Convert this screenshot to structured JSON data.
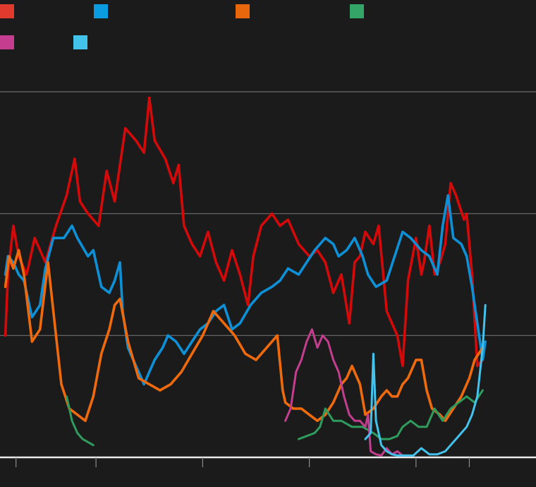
{
  "chart_data": {
    "type": "line",
    "title": "",
    "xlabel": "",
    "ylabel": "",
    "x_range": [
      2009.7,
      2019.75
    ],
    "ylim": [
      0,
      60
    ],
    "grid": "horizontal",
    "x_ticks": [
      2010,
      2011.5,
      2013.5,
      2015.5,
      2017.5,
      2018.5
    ],
    "y_ticks": [
      0,
      20,
      40,
      60
    ],
    "legend_placement": "top-left",
    "legend": [
      {
        "color": "#e03a2f"
      },
      {
        "color": "#0b9be0"
      },
      {
        "color": "#e8670c"
      },
      {
        "color": "#35a467"
      },
      {
        "color": "#c43d8f"
      },
      {
        "color": "#41c3ea"
      }
    ],
    "series": [
      {
        "color": "#d40a0a",
        "points": [
          [
            2009.8,
            20
          ],
          [
            2009.85,
            30
          ],
          [
            2009.95,
            38
          ],
          [
            2010.05,
            33
          ],
          [
            2010.2,
            30
          ],
          [
            2010.35,
            36
          ],
          [
            2010.55,
            32
          ],
          [
            2010.75,
            38
          ],
          [
            2010.95,
            43
          ],
          [
            2011.1,
            49
          ],
          [
            2011.2,
            42
          ],
          [
            2011.35,
            40
          ],
          [
            2011.55,
            38
          ],
          [
            2011.7,
            47
          ],
          [
            2011.85,
            42
          ],
          [
            2012.05,
            54
          ],
          [
            2012.25,
            52
          ],
          [
            2012.4,
            50
          ],
          [
            2012.5,
            59
          ],
          [
            2012.6,
            52
          ],
          [
            2012.8,
            49
          ],
          [
            2012.95,
            45
          ],
          [
            2013.05,
            48
          ],
          [
            2013.15,
            38
          ],
          [
            2013.3,
            35
          ],
          [
            2013.45,
            33
          ],
          [
            2013.6,
            37
          ],
          [
            2013.75,
            32
          ],
          [
            2013.9,
            29
          ],
          [
            2014.05,
            34
          ],
          [
            2014.2,
            30
          ],
          [
            2014.35,
            25
          ],
          [
            2014.45,
            33
          ],
          [
            2014.6,
            38
          ],
          [
            2014.8,
            40
          ],
          [
            2014.95,
            38
          ],
          [
            2015.1,
            39
          ],
          [
            2015.3,
            35
          ],
          [
            2015.5,
            33
          ],
          [
            2015.65,
            34
          ],
          [
            2015.8,
            32
          ],
          [
            2015.95,
            27
          ],
          [
            2016.1,
            30
          ],
          [
            2016.25,
            22
          ],
          [
            2016.35,
            32
          ],
          [
            2016.45,
            33
          ],
          [
            2016.55,
            37
          ],
          [
            2016.7,
            35
          ],
          [
            2016.8,
            38
          ],
          [
            2016.95,
            24
          ],
          [
            2017.05,
            22
          ],
          [
            2017.15,
            20
          ],
          [
            2017.25,
            15
          ],
          [
            2017.35,
            29
          ],
          [
            2017.5,
            36
          ],
          [
            2017.6,
            30
          ],
          [
            2017.65,
            32
          ],
          [
            2017.75,
            38
          ],
          [
            2017.85,
            30
          ],
          [
            2017.95,
            32
          ],
          [
            2018.05,
            35
          ],
          [
            2018.15,
            45
          ],
          [
            2018.25,
            43
          ],
          [
            2018.4,
            39
          ],
          [
            2018.45,
            40
          ],
          [
            2018.55,
            30
          ],
          [
            2018.65,
            15
          ],
          [
            2018.75,
            16
          ]
        ]
      },
      {
        "color": "#0d90d6",
        "points": [
          [
            2009.8,
            30
          ],
          [
            2009.85,
            33
          ],
          [
            2009.95,
            32
          ],
          [
            2010.05,
            30
          ],
          [
            2010.15,
            29
          ],
          [
            2010.3,
            23
          ],
          [
            2010.45,
            25
          ],
          [
            2010.55,
            31
          ],
          [
            2010.7,
            36
          ],
          [
            2010.9,
            36
          ],
          [
            2011.05,
            38
          ],
          [
            2011.15,
            36
          ],
          [
            2011.35,
            33
          ],
          [
            2011.45,
            34
          ],
          [
            2011.6,
            28
          ],
          [
            2011.75,
            27
          ],
          [
            2011.85,
            29
          ],
          [
            2011.95,
            32
          ],
          [
            2012.0,
            24
          ],
          [
            2012.1,
            18
          ],
          [
            2012.25,
            15
          ],
          [
            2012.4,
            12
          ],
          [
            2012.5,
            14
          ],
          [
            2012.6,
            16
          ],
          [
            2012.75,
            18
          ],
          [
            2012.85,
            20
          ],
          [
            2013.0,
            19
          ],
          [
            2013.15,
            17
          ],
          [
            2013.3,
            19
          ],
          [
            2013.45,
            21
          ],
          [
            2013.6,
            22
          ],
          [
            2013.75,
            24
          ],
          [
            2013.9,
            25
          ],
          [
            2014.05,
            21
          ],
          [
            2014.2,
            22
          ],
          [
            2014.4,
            25
          ],
          [
            2014.6,
            27
          ],
          [
            2014.8,
            28
          ],
          [
            2014.95,
            29
          ],
          [
            2015.1,
            31
          ],
          [
            2015.3,
            30
          ],
          [
            2015.45,
            32
          ],
          [
            2015.6,
            34
          ],
          [
            2015.8,
            36
          ],
          [
            2015.95,
            35
          ],
          [
            2016.05,
            33
          ],
          [
            2016.2,
            34
          ],
          [
            2016.35,
            36
          ],
          [
            2016.5,
            33
          ],
          [
            2016.6,
            30
          ],
          [
            2016.75,
            28
          ],
          [
            2016.95,
            29
          ],
          [
            2017.1,
            33
          ],
          [
            2017.25,
            37
          ],
          [
            2017.4,
            36
          ],
          [
            2017.6,
            34
          ],
          [
            2017.75,
            33
          ],
          [
            2017.9,
            30
          ],
          [
            2018.0,
            38
          ],
          [
            2018.1,
            43
          ],
          [
            2018.2,
            36
          ],
          [
            2018.35,
            35
          ],
          [
            2018.45,
            33
          ],
          [
            2018.55,
            28
          ],
          [
            2018.65,
            22
          ],
          [
            2018.7,
            19
          ],
          [
            2018.75,
            16
          ],
          [
            2018.8,
            19
          ]
        ]
      },
      {
        "color": "#ee6a0c",
        "points": [
          [
            2009.8,
            28
          ],
          [
            2009.87,
            33
          ],
          [
            2009.95,
            31
          ],
          [
            2010.05,
            34
          ],
          [
            2010.15,
            30
          ],
          [
            2010.3,
            19
          ],
          [
            2010.45,
            21
          ],
          [
            2010.6,
            32
          ],
          [
            2010.75,
            20
          ],
          [
            2010.85,
            12
          ],
          [
            2011.0,
            8
          ],
          [
            2011.15,
            7
          ],
          [
            2011.3,
            6
          ],
          [
            2011.45,
            10
          ],
          [
            2011.6,
            17
          ],
          [
            2011.75,
            21
          ],
          [
            2011.85,
            25
          ],
          [
            2011.95,
            26
          ],
          [
            2012.1,
            19
          ],
          [
            2012.3,
            13
          ],
          [
            2012.5,
            12
          ],
          [
            2012.7,
            11
          ],
          [
            2012.9,
            12
          ],
          [
            2013.1,
            14
          ],
          [
            2013.3,
            17
          ],
          [
            2013.5,
            20
          ],
          [
            2013.7,
            24
          ],
          [
            2013.9,
            22
          ],
          [
            2014.1,
            20
          ],
          [
            2014.3,
            17
          ],
          [
            2014.5,
            16
          ],
          [
            2014.7,
            18
          ],
          [
            2014.9,
            20
          ],
          [
            2015.0,
            11
          ],
          [
            2015.05,
            9
          ],
          [
            2015.2,
            8
          ],
          [
            2015.35,
            8
          ],
          [
            2015.5,
            7
          ],
          [
            2015.65,
            6
          ],
          [
            2015.8,
            7
          ],
          [
            2015.95,
            9
          ],
          [
            2016.1,
            12
          ],
          [
            2016.2,
            13
          ],
          [
            2016.3,
            15
          ],
          [
            2016.45,
            12
          ],
          [
            2016.55,
            7
          ],
          [
            2016.7,
            8
          ],
          [
            2016.85,
            10
          ],
          [
            2016.95,
            11
          ],
          [
            2017.05,
            10
          ],
          [
            2017.15,
            10
          ],
          [
            2017.25,
            12
          ],
          [
            2017.35,
            13
          ],
          [
            2017.5,
            16
          ],
          [
            2017.6,
            16
          ],
          [
            2017.7,
            11
          ],
          [
            2017.8,
            8
          ],
          [
            2017.95,
            7
          ],
          [
            2018.05,
            6
          ],
          [
            2018.2,
            8
          ],
          [
            2018.35,
            10
          ],
          [
            2018.5,
            13
          ],
          [
            2018.6,
            16
          ],
          [
            2018.75,
            18
          ]
        ]
      },
      {
        "color": "#2f9c5e",
        "segments": [
          [
            [
              2010.95,
              10
            ],
            [
              2011.05,
              6
            ],
            [
              2011.15,
              4
            ],
            [
              2011.25,
              3
            ],
            [
              2011.35,
              2.5
            ],
            [
              2011.45,
              2
            ]
          ],
          [
            [
              2015.3,
              3
            ],
            [
              2015.45,
              3.5
            ],
            [
              2015.6,
              4
            ],
            [
              2015.7,
              5
            ],
            [
              2015.8,
              8
            ],
            [
              2015.95,
              6
            ],
            [
              2016.1,
              6
            ],
            [
              2016.3,
              5
            ],
            [
              2016.5,
              5
            ],
            [
              2016.7,
              4
            ],
            [
              2016.85,
              3
            ],
            [
              2017.0,
              3
            ],
            [
              2017.15,
              3.5
            ],
            [
              2017.25,
              5
            ],
            [
              2017.4,
              6
            ],
            [
              2017.55,
              5
            ],
            [
              2017.7,
              5
            ],
            [
              2017.85,
              8
            ],
            [
              2018.0,
              6
            ],
            [
              2018.15,
              8
            ],
            [
              2018.3,
              9
            ],
            [
              2018.45,
              10
            ],
            [
              2018.6,
              9
            ],
            [
              2018.75,
              11
            ]
          ]
        ]
      },
      {
        "color": "#c33e8e",
        "segments": [
          [
            [
              2015.05,
              6
            ],
            [
              2015.15,
              8
            ],
            [
              2015.25,
              14
            ],
            [
              2015.35,
              16
            ],
            [
              2015.45,
              19
            ],
            [
              2015.55,
              21
            ],
            [
              2015.65,
              18
            ],
            [
              2015.75,
              20
            ],
            [
              2015.85,
              19
            ],
            [
              2015.95,
              16
            ],
            [
              2016.05,
              14
            ],
            [
              2016.15,
              10
            ],
            [
              2016.25,
              7
            ],
            [
              2016.35,
              6
            ],
            [
              2016.45,
              6
            ],
            [
              2016.55,
              5
            ],
            [
              2016.6,
              7
            ],
            [
              2016.65,
              1
            ],
            [
              2016.75,
              0.5
            ],
            [
              2016.85,
              0.3
            ],
            [
              2016.95,
              1.5
            ],
            [
              2017.05,
              0.5
            ],
            [
              2017.15,
              1
            ],
            [
              2017.25,
              0.3
            ],
            [
              2017.35,
              0.3
            ]
          ]
        ]
      },
      {
        "color": "#43c3ec",
        "segments": [
          [
            [
              2016.55,
              3
            ],
            [
              2016.65,
              4
            ],
            [
              2016.7,
              17
            ],
            [
              2016.75,
              6
            ],
            [
              2016.8,
              4
            ],
            [
              2016.85,
              2
            ],
            [
              2016.95,
              1
            ],
            [
              2017.05,
              0.5
            ],
            [
              2017.15,
              0.3
            ],
            [
              2017.3,
              0.3
            ],
            [
              2017.45,
              0.3
            ],
            [
              2017.6,
              1.5
            ],
            [
              2017.75,
              0.5
            ],
            [
              2017.9,
              0.5
            ],
            [
              2018.05,
              1
            ],
            [
              2018.15,
              2
            ],
            [
              2018.25,
              3
            ],
            [
              2018.35,
              4
            ],
            [
              2018.45,
              5
            ],
            [
              2018.55,
              7
            ],
            [
              2018.65,
              10
            ],
            [
              2018.75,
              18
            ],
            [
              2018.8,
              25
            ]
          ]
        ]
      }
    ]
  }
}
